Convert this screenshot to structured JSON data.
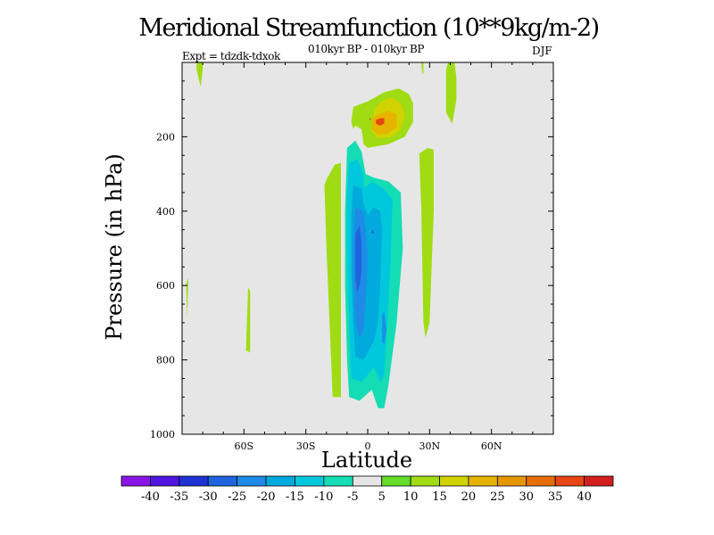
{
  "chart_data": {
    "type": "contour",
    "title": "Meridional Streamfunction (10**9kg/m-2)",
    "subtitle": "010kyr BP - 010kyr BP",
    "experiment": "Expt = tdzdk-tdxok",
    "season": "DJF",
    "xlabel": "Latitude",
    "ylabel": "Pressure (in hPa)",
    "xlim": [
      -90,
      90
    ],
    "ylim": [
      0,
      1000
    ],
    "y_inverted": true,
    "x_ticks": [
      {
        "value": -60,
        "label": "60S"
      },
      {
        "value": -30,
        "label": "30S"
      },
      {
        "value": 0,
        "label": "0"
      },
      {
        "value": 30,
        "label": "30N"
      },
      {
        "value": 60,
        "label": "60N"
      }
    ],
    "y_ticks": [
      {
        "value": 200,
        "label": "200"
      },
      {
        "value": 400,
        "label": "400"
      },
      {
        "value": 600,
        "label": "600"
      },
      {
        "value": 800,
        "label": "800"
      },
      {
        "value": 1000,
        "label": "1000"
      }
    ],
    "background_level_color": "#e6e6e6",
    "colorbar": {
      "boundaries": [
        "-40",
        "-35",
        "-30",
        "-25",
        "-20",
        "-15",
        "-10",
        "-5",
        "5",
        "10",
        "15",
        "20",
        "25",
        "30",
        "35",
        "40"
      ],
      "colors": [
        "#8a14e6",
        "#5014e0",
        "#1e32d2",
        "#1e64dc",
        "#1e8ce6",
        "#00aadc",
        "#00c8dc",
        "#14dcb4",
        "#e6e6e6",
        "#64dc28",
        "#a0dc14",
        "#d2d200",
        "#e6b400",
        "#e69600",
        "#e66e00",
        "#e64614",
        "#d21e1e"
      ]
    },
    "contour_regions": [
      {
        "level": 10,
        "points": [
          [
            -83,
            0
          ],
          [
            -80,
            0
          ],
          [
            -80,
            20
          ],
          [
            -81,
            65
          ],
          [
            -83,
            20
          ]
        ]
      },
      {
        "level": 10,
        "points": [
          [
            -88,
            595
          ],
          [
            -87,
            580
          ],
          [
            -87,
            590
          ],
          [
            -87.5,
            690
          ]
        ]
      },
      {
        "level": 10,
        "points": [
          [
            -58,
            605
          ],
          [
            -57,
            615
          ],
          [
            -57,
            780
          ],
          [
            -59,
            775
          ]
        ]
      },
      {
        "level": 10,
        "points": [
          [
            -20,
            315
          ],
          [
            -16,
            275
          ],
          [
            -13,
            270
          ],
          [
            -13,
            900
          ],
          [
            -17,
            900
          ],
          [
            -20,
            500
          ],
          [
            -21,
            330
          ]
        ]
      },
      {
        "level": 10,
        "points": [
          [
            25,
            245
          ],
          [
            29,
            230
          ],
          [
            32,
            235
          ],
          [
            32,
            400
          ],
          [
            31,
            550
          ],
          [
            30,
            700
          ],
          [
            28,
            740
          ],
          [
            27,
            700
          ],
          [
            26,
            400
          ]
        ]
      },
      {
        "level": 10,
        "points": [
          [
            39,
            0
          ],
          [
            42,
            0
          ],
          [
            43,
            40
          ],
          [
            43,
            100
          ],
          [
            41,
            165
          ],
          [
            38,
            135
          ],
          [
            38,
            20
          ]
        ]
      },
      {
        "level": 10,
        "points": [
          [
            -7,
            120
          ],
          [
            0,
            105
          ],
          [
            8,
            80
          ],
          [
            15,
            70
          ],
          [
            20,
            85
          ],
          [
            22,
            110
          ],
          [
            22,
            160
          ],
          [
            18,
            200
          ],
          [
            10,
            220
          ],
          [
            0,
            230
          ],
          [
            -6,
            200
          ],
          [
            -8,
            160
          ]
        ]
      },
      {
        "level": 10,
        "points": [
          [
            26,
            0
          ],
          [
            27,
            0
          ],
          [
            27,
            30
          ],
          [
            26.5,
            30
          ]
        ]
      },
      {
        "level": 15,
        "points": [
          [
            4,
            120
          ],
          [
            8,
            100
          ],
          [
            12,
            95
          ],
          [
            16,
            110
          ],
          [
            18,
            140
          ],
          [
            16,
            180
          ],
          [
            12,
            200
          ],
          [
            5,
            205
          ],
          [
            2,
            185
          ],
          [
            2,
            150
          ]
        ]
      },
      {
        "level": 20,
        "points": [
          [
            2,
            150
          ],
          [
            5,
            140
          ],
          [
            10,
            130
          ],
          [
            14,
            140
          ],
          [
            14,
            175
          ],
          [
            10,
            190
          ],
          [
            5,
            195
          ],
          [
            2,
            180
          ]
        ]
      },
      {
        "level": 35,
        "points": [
          [
            4,
            155
          ],
          [
            6,
            150
          ],
          [
            8,
            150
          ],
          [
            8,
            165
          ],
          [
            6,
            170
          ],
          [
            4,
            165
          ]
        ]
      },
      {
        "level": 40,
        "points": [
          [
            1,
            150
          ],
          [
            1.4,
            150
          ],
          [
            1.4,
            155
          ],
          [
            1,
            155
          ]
        ]
      },
      {
        "level": 0,
        "points": [
          [
            -10,
            230
          ],
          [
            -4,
            225
          ],
          [
            -3,
            240
          ],
          [
            -3,
            280
          ],
          [
            -6,
            260
          ],
          [
            -9,
            245
          ]
        ]
      },
      {
        "level": -5,
        "points": [
          [
            -12,
            340
          ],
          [
            -11,
            250
          ],
          [
            -10,
            200
          ],
          [
            -6,
            170
          ],
          [
            -3,
            180
          ],
          [
            -1,
            260
          ],
          [
            1,
            300
          ],
          [
            5,
            300
          ],
          [
            14,
            300
          ],
          [
            20,
            330
          ],
          [
            20,
            520
          ],
          [
            16,
            650
          ],
          [
            12,
            800
          ],
          [
            10,
            910
          ],
          [
            9,
            955
          ],
          [
            7,
            960
          ],
          [
            5,
            940
          ],
          [
            2,
            920
          ],
          [
            -3,
            960
          ],
          [
            -7,
            980
          ],
          [
            -10,
            960
          ],
          [
            -12,
            900
          ],
          [
            -13,
            700
          ],
          [
            -13,
            500
          ]
        ]
      },
      {
        "level": -10,
        "points": [
          [
            -10,
            230
          ],
          [
            -6,
            210
          ],
          [
            -3,
            240
          ],
          [
            -1,
            300
          ],
          [
            3,
            310
          ],
          [
            10,
            320
          ],
          [
            16,
            350
          ],
          [
            17,
            500
          ],
          [
            14,
            700
          ],
          [
            10,
            870
          ],
          [
            8,
            930
          ],
          [
            5,
            930
          ],
          [
            2,
            880
          ],
          [
            -4,
            910
          ],
          [
            -9,
            900
          ],
          [
            -10,
            800
          ],
          [
            -11,
            600
          ],
          [
            -11,
            400
          ]
        ]
      },
      {
        "level": -15,
        "points": [
          [
            -9,
            270
          ],
          [
            -5,
            260
          ],
          [
            -2,
            300
          ],
          [
            -2,
            340
          ],
          [
            2,
            320
          ],
          [
            8,
            340
          ],
          [
            12,
            370
          ],
          [
            11,
            550
          ],
          [
            9,
            750
          ],
          [
            8,
            840
          ],
          [
            6,
            860
          ],
          [
            3,
            820
          ],
          [
            -3,
            860
          ],
          [
            -8,
            850
          ],
          [
            -9,
            700
          ],
          [
            -10,
            500
          ],
          [
            -10,
            350
          ]
        ]
      },
      {
        "level": -20,
        "points": [
          [
            -7,
            330
          ],
          [
            -3,
            340
          ],
          [
            -2,
            380
          ],
          [
            0,
            410
          ],
          [
            3,
            390
          ],
          [
            6,
            400
          ],
          [
            7,
            450
          ],
          [
            6,
            600
          ],
          [
            5,
            700
          ],
          [
            3,
            750
          ],
          [
            -2,
            800
          ],
          [
            -6,
            790
          ],
          [
            -7,
            700
          ],
          [
            -8,
            550
          ],
          [
            -8,
            420
          ]
        ]
      },
      {
        "level": -25,
        "points": [
          [
            -6,
            390
          ],
          [
            -2,
            400
          ],
          [
            -1,
            450
          ],
          [
            0,
            520
          ],
          [
            -1,
            650
          ],
          [
            -2,
            720
          ],
          [
            -4,
            740
          ],
          [
            -6,
            700
          ],
          [
            -7,
            600
          ],
          [
            -7,
            480
          ]
        ]
      },
      {
        "level": -25,
        "points": [
          [
            7,
            680
          ],
          [
            8,
            670
          ],
          [
            9,
            720
          ],
          [
            8,
            760
          ],
          [
            7,
            750
          ]
        ]
      },
      {
        "level": -30,
        "points": [
          [
            -6,
            460
          ],
          [
            -4,
            440
          ],
          [
            -3,
            480
          ],
          [
            -3,
            560
          ],
          [
            -4,
            600
          ],
          [
            -5,
            620
          ],
          [
            -6,
            580
          ],
          [
            -6,
            520
          ]
        ]
      },
      {
        "level": -30,
        "points": [
          [
            2,
            450
          ],
          [
            3,
            455
          ],
          [
            3,
            460
          ],
          [
            2,
            460
          ]
        ]
      }
    ]
  }
}
